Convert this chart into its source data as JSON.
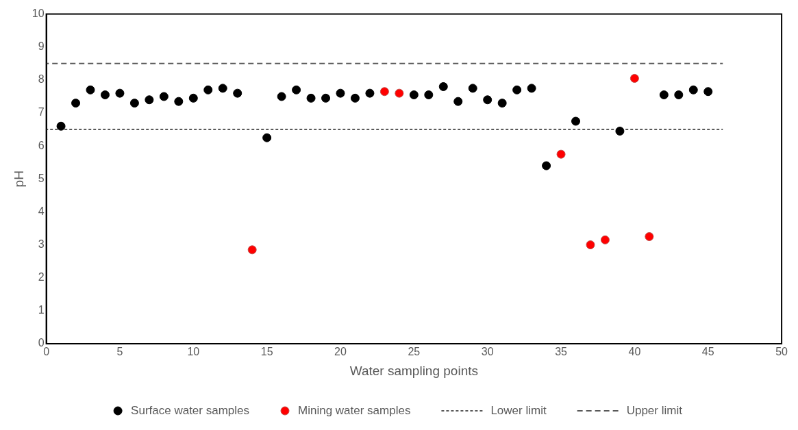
{
  "chart_data": {
    "type": "scatter",
    "xlabel": "Water sampling points",
    "ylabel": "pH",
    "xlim": [
      0,
      50
    ],
    "xticks": [
      0,
      5,
      10,
      15,
      20,
      25,
      30,
      35,
      40,
      45,
      50
    ],
    "ylim": [
      0,
      10
    ],
    "yticks": [
      0,
      1,
      2,
      3,
      4,
      5,
      6,
      7,
      8,
      9,
      10
    ],
    "grid": false,
    "legend": "bottom",
    "marker": "circle",
    "series": [
      {
        "name": "Surface water samples",
        "color": "#000000",
        "type": "scatter",
        "x": [
          1,
          2,
          3,
          4,
          5,
          6,
          7,
          8,
          9,
          10,
          11,
          12,
          13,
          15,
          16,
          17,
          18,
          19,
          20,
          21,
          22,
          25,
          26,
          27,
          28,
          29,
          30,
          31,
          32,
          33,
          34,
          36,
          39,
          42,
          43,
          44,
          45
        ],
        "values": [
          6.6,
          7.3,
          7.7,
          7.55,
          7.6,
          7.3,
          7.4,
          7.5,
          7.35,
          7.45,
          7.7,
          7.75,
          7.6,
          6.25,
          7.5,
          7.7,
          7.45,
          7.45,
          7.6,
          7.45,
          7.6,
          7.55,
          7.55,
          7.8,
          7.35,
          7.75,
          7.4,
          7.3,
          7.7,
          7.75,
          5.4,
          6.75,
          6.45,
          7.55,
          7.55,
          7.7,
          7.65
        ]
      },
      {
        "name": "Mining water samples",
        "color": "#ff0000",
        "type": "scatter",
        "x": [
          14,
          23,
          24,
          35,
          37,
          38,
          40,
          41
        ],
        "values": [
          2.85,
          7.65,
          7.6,
          5.75,
          3.0,
          3.15,
          8.05,
          3.25
        ]
      },
      {
        "name": "Lower limit",
        "color": "#595959",
        "type": "line",
        "line_style": "dotted",
        "marker": "none",
        "x": [
          0,
          46
        ],
        "values": [
          6.5,
          6.5
        ]
      },
      {
        "name": "Upper limit",
        "color": "#595959",
        "type": "line",
        "line_style": "dashed",
        "marker": "none",
        "x": [
          0,
          46
        ],
        "values": [
          8.5,
          8.5
        ]
      }
    ]
  }
}
